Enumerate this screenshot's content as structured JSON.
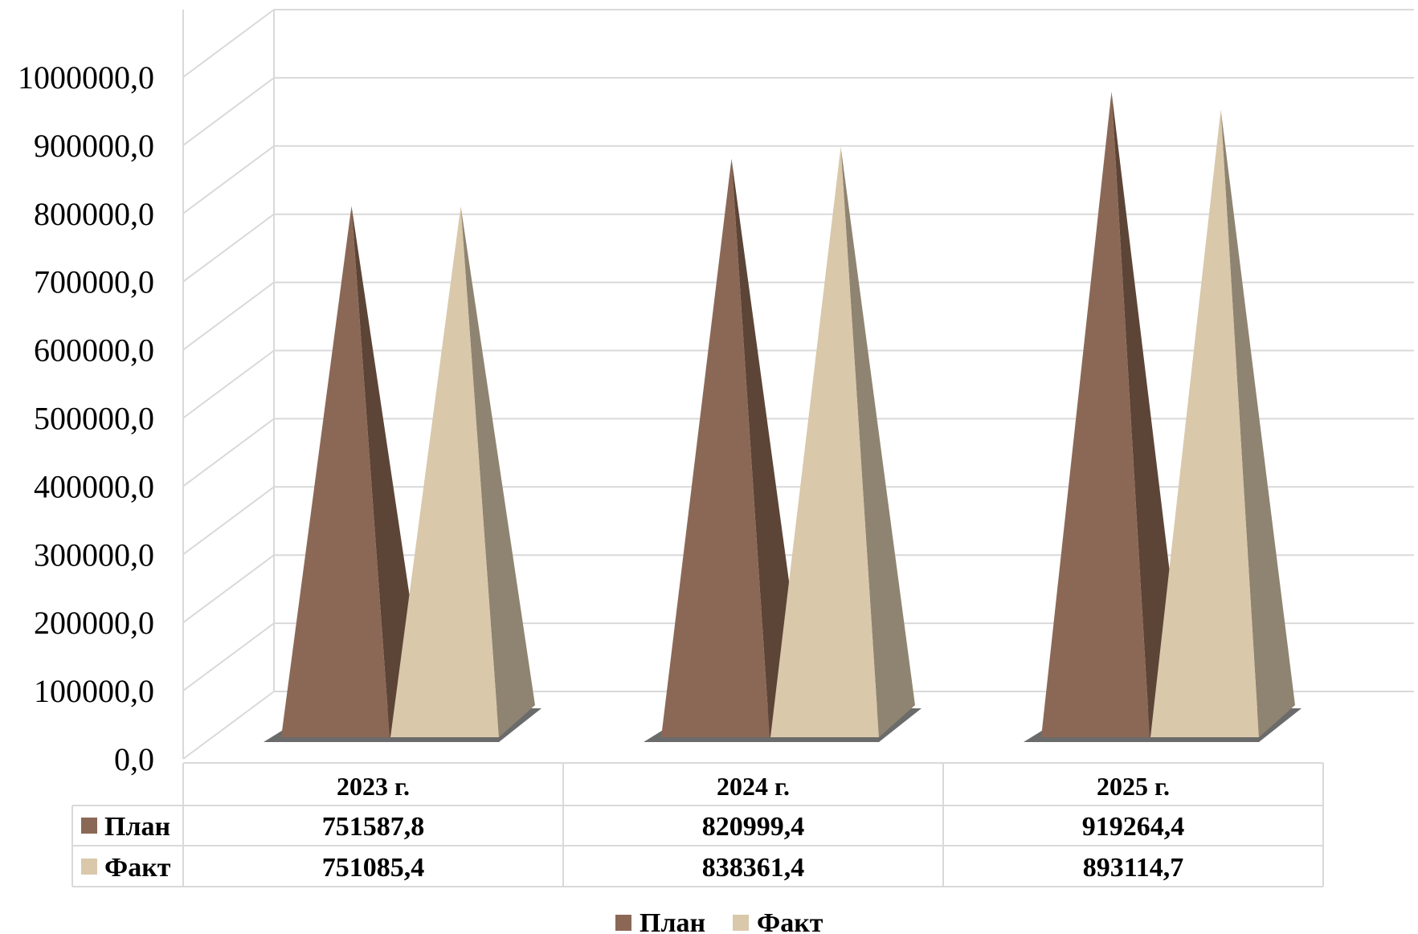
{
  "chart_data": {
    "type": "bar",
    "style": "3d-pyramid",
    "categories": [
      "2023 г.",
      "2024 г.",
      "2025 г."
    ],
    "series": [
      {
        "name": "План",
        "values": [
          751587.8,
          820999.4,
          919264.4
        ],
        "display": [
          "751587,8",
          "820999,4",
          "919264,4"
        ],
        "color": "#8b6856",
        "shade": "#5c4537"
      },
      {
        "name": "Факт",
        "values": [
          751085.4,
          838361.4,
          893114.7
        ],
        "display": [
          "751085,4",
          "838361,4",
          "893114,7"
        ],
        "color": "#d9c8aa",
        "shade": "#8f8471"
      }
    ],
    "yticks": [
      "0,0",
      "100000,0",
      "200000,0",
      "300000,0",
      "400000,0",
      "500000,0",
      "600000,0",
      "700000,0",
      "800000,0",
      "900000,0",
      "1000000,0"
    ],
    "ylim": [
      0,
      1000000
    ],
    "grid": true,
    "legend": "bottom",
    "data_table": true
  }
}
